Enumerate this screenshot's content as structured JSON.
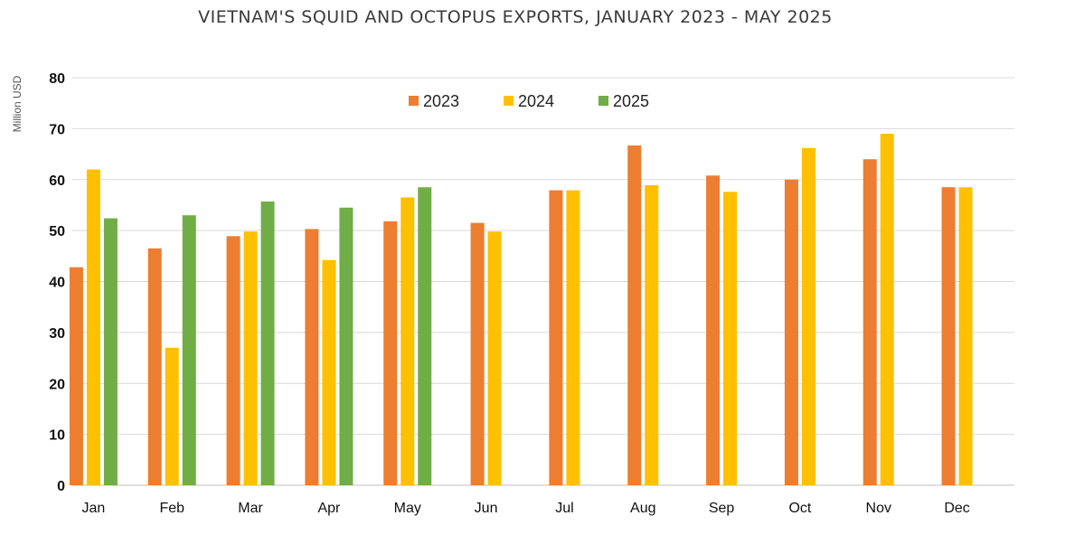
{
  "chart_data": {
    "type": "bar",
    "title": "VIETNAM'S SQUID AND OCTOPUS EXPORTS, JANUARY 2023 - MAY 2025",
    "ylabel": "Million USD",
    "xlabel": "",
    "categories": [
      "Jan",
      "Feb",
      "Mar",
      "Apr",
      "May",
      "Jun",
      "Jul",
      "Aug",
      "Sep",
      "Oct",
      "Nov",
      "Dec"
    ],
    "ylim": [
      0,
      80
    ],
    "yticks": [
      "0",
      "10",
      "20",
      "30",
      "40",
      "50",
      "60",
      "70",
      "80"
    ],
    "grid": "horizontal",
    "legend_position": "top-center",
    "series": [
      {
        "name": "2023",
        "color": "#ED7D31",
        "values": [
          42.8,
          46.5,
          48.9,
          50.3,
          51.8,
          51.5,
          57.9,
          66.7,
          60.8,
          60.0,
          64.0,
          58.5
        ]
      },
      {
        "name": "2024",
        "color": "#FFC000",
        "values": [
          62.0,
          27.0,
          49.8,
          44.2,
          56.5,
          49.8,
          57.9,
          58.9,
          57.6,
          66.2,
          69.0,
          58.5
        ]
      },
      {
        "name": "2025",
        "color": "#70AD47",
        "values": [
          52.4,
          53.0,
          55.7,
          54.5,
          58.5,
          null,
          null,
          null,
          null,
          null,
          null,
          null
        ]
      }
    ]
  }
}
